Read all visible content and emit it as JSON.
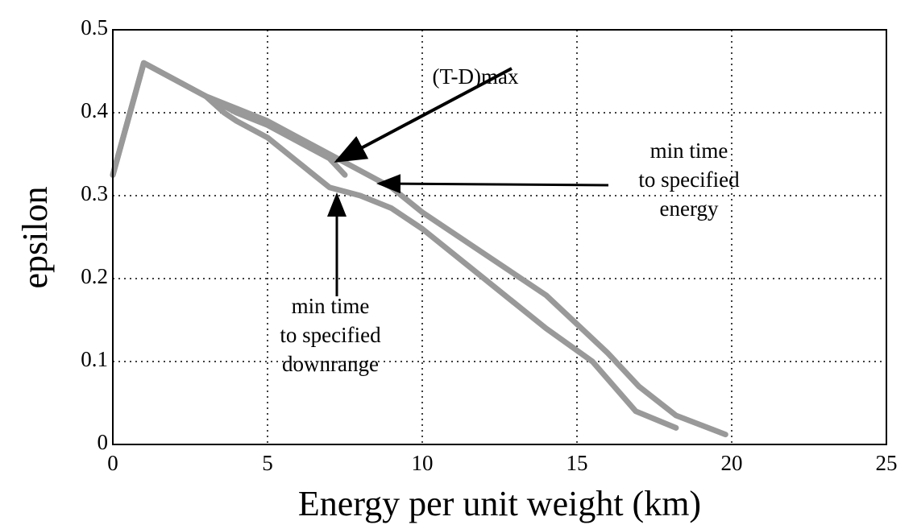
{
  "chart_data": {
    "type": "line",
    "xlabel": "Energy per unit weight (km)",
    "ylabel": "epsilon",
    "xlim": [
      0,
      25
    ],
    "xticks": [
      0,
      5,
      10,
      15,
      20,
      25
    ],
    "ylim": [
      0,
      0.5
    ],
    "yticks": [
      0,
      0.1,
      0.2,
      0.3,
      0.4,
      0.5
    ],
    "grid": true,
    "series": [
      {
        "color": "#999999",
        "x": [
          0,
          1,
          2,
          3,
          3.6,
          4,
          5,
          6,
          7,
          8,
          9,
          10,
          12,
          14,
          15.5,
          16.9,
          18.2
        ],
        "values": [
          0.325,
          0.46,
          0.44,
          0.42,
          0.4,
          0.39,
          0.37,
          0.34,
          0.31,
          0.3,
          0.285,
          0.26,
          0.2,
          0.14,
          0.1,
          0.04,
          0.02
        ]
      },
      {
        "color": "#999999",
        "x": [
          0,
          1,
          2,
          3,
          4,
          5,
          6,
          7,
          7.5
        ],
        "values": [
          0.325,
          0.46,
          0.44,
          0.42,
          0.4,
          0.385,
          0.365,
          0.345,
          0.325
        ]
      },
      {
        "color": "#999999",
        "x": [
          0,
          1,
          2,
          3,
          4,
          5,
          6,
          7,
          8,
          9,
          10,
          12,
          14,
          15,
          16,
          17,
          18.2,
          19.8
        ],
        "values": [
          0.325,
          0.46,
          0.44,
          0.42,
          0.405,
          0.39,
          0.37,
          0.35,
          0.33,
          0.31,
          0.28,
          0.23,
          0.18,
          0.145,
          0.11,
          0.07,
          0.035,
          0.012
        ]
      }
    ],
    "annotations": [
      {
        "lines": [
          "(T-D)max"
        ]
      },
      {
        "lines": [
          "min time",
          "to specified",
          "energy"
        ]
      },
      {
        "lines": [
          "min time",
          "to specified",
          "downrange"
        ]
      }
    ]
  }
}
